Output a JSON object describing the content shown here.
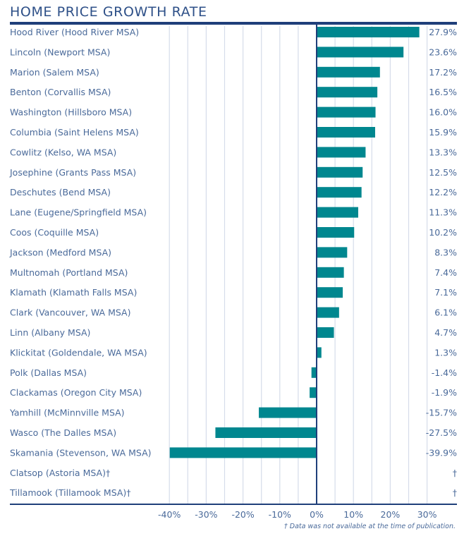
{
  "chart_data": {
    "type": "bar",
    "orientation": "horizontal",
    "title": "HOME PRICE GROWTH RATE",
    "xlabel": "",
    "ylabel": "",
    "xlim": [
      -40,
      37
    ],
    "grid": true,
    "grid_step": 5,
    "xticks": [
      -40,
      -30,
      -20,
      -10,
      0,
      10,
      20,
      30
    ],
    "xtick_labels": [
      "-40%",
      "-30%",
      "-20%",
      "-10%",
      "0%",
      "10%",
      "20%",
      "30%"
    ],
    "categories": [
      "Hood River (Hood River MSA)",
      "Lincoln (Newport MSA)",
      "Marion (Salem MSA)",
      "Benton (Corvallis MSA)",
      "Washington (Hillsboro MSA)",
      "Columbia (Saint Helens MSA)",
      "Cowlitz (Kelso, WA MSA)",
      "Josephine (Grants Pass MSA)",
      "Deschutes (Bend MSA)",
      "Lane (Eugene/Springfield MSA)",
      "Coos (Coquille MSA)",
      "Jackson (Medford MSA)",
      "Multnomah (Portland MSA)",
      "Klamath (Klamath Falls MSA)",
      "Clark (Vancouver, WA MSA)",
      "Linn (Albany MSA)",
      "Klickitat (Goldendale, WA MSA)",
      "Polk (Dallas MSA)",
      "Clackamas (Oregon City MSA)",
      "Yamhill (McMinnville MSA)",
      "Wasco (The Dalles MSA)",
      "Skamania (Stevenson, WA MSA)",
      "Clatsop (Astoria MSA)†",
      "Tillamook (Tillamook MSA)†"
    ],
    "values": [
      27.9,
      23.6,
      17.2,
      16.5,
      16.0,
      15.9,
      13.3,
      12.5,
      12.2,
      11.3,
      10.2,
      8.3,
      7.4,
      7.1,
      6.1,
      4.7,
      1.3,
      -1.4,
      -1.9,
      -15.7,
      -27.5,
      -39.9,
      null,
      null
    ],
    "value_labels": [
      "27.9%",
      "23.6%",
      "17.2%",
      "16.5%",
      "16.0%",
      "15.9%",
      "13.3%",
      "12.5%",
      "12.2%",
      "11.3%",
      "10.2%",
      "8.3%",
      "7.4%",
      "7.1%",
      "6.1%",
      "4.7%",
      "1.3%",
      "-1.4%",
      "-1.9%",
      "-15.7%",
      "-27.5%",
      "-39.9%",
      "†",
      "†"
    ],
    "footnote": "† Data was not available at the time of publication."
  },
  "colors": {
    "bar": "#00878f",
    "rule": "#1f3f7a",
    "grid": "#d6dcea",
    "text": "#4a6a9a",
    "title": "#2e5088"
  }
}
